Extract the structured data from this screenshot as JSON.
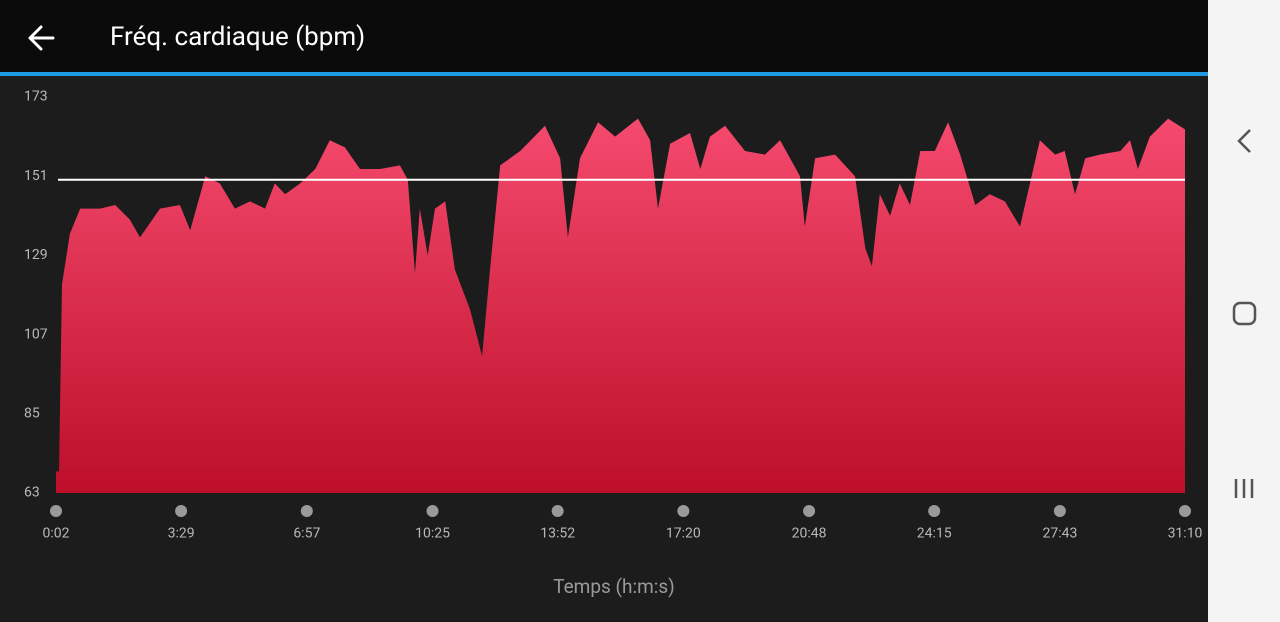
{
  "header": {
    "title": "Fréq. cardiaque (bpm)"
  },
  "chart_data": {
    "type": "area",
    "x_label": "Temps (h:m:s)",
    "x": [
      2,
      7,
      12,
      25,
      42,
      75,
      100,
      124,
      141,
      174,
      207,
      224,
      249,
      273,
      298,
      323,
      348,
      364,
      381,
      406,
      431,
      455,
      480,
      505,
      538,
      571,
      584,
      596,
      604,
      617,
      629,
      646,
      662,
      687,
      707,
      720,
      737,
      770,
      811,
      836,
      849,
      869,
      899,
      927,
      965,
      985,
      998,
      1018,
      1051,
      1068,
      1084,
      1109,
      1142,
      1175,
      1200,
      1233,
      1241,
      1258,
      1291,
      1324,
      1341,
      1352,
      1365,
      1382,
      1398,
      1415,
      1432,
      1456,
      1478,
      1498,
      1523,
      1547,
      1572,
      1597,
      1630,
      1655,
      1671,
      1688,
      1705,
      1729,
      1763,
      1779,
      1792,
      1812,
      1842,
      1870
    ],
    "values": [
      69,
      69,
      121,
      135,
      142,
      142,
      143,
      139,
      134,
      142,
      143,
      136,
      151,
      149,
      142,
      144,
      142,
      149,
      146,
      149,
      153,
      161,
      159,
      153,
      153,
      154,
      150,
      124,
      142,
      129,
      142,
      144,
      125,
      114,
      101,
      125,
      154,
      158,
      165,
      156,
      134,
      156,
      166,
      162,
      167,
      161,
      142,
      160,
      163,
      153,
      162,
      165,
      158,
      157,
      161,
      151,
      137,
      156,
      157,
      151,
      131,
      126,
      146,
      140,
      149,
      143,
      158,
      158,
      166,
      157,
      143,
      146,
      144,
      137,
      161,
      157,
      158,
      146,
      156,
      157,
      158,
      161,
      153,
      162,
      167,
      164
    ],
    "color_top": "#f54a6e",
    "color_bottom": "#bd0f2a",
    "reference_line": 150,
    "reference_color": "#ffffff",
    "xlim": [
      2,
      1870
    ],
    "xticks": [
      {
        "value": 2,
        "label": "0:02"
      },
      {
        "value": 209,
        "label": "3:29"
      },
      {
        "value": 417,
        "label": "6:57"
      },
      {
        "value": 625,
        "label": "10:25"
      },
      {
        "value": 832,
        "label": "13:52"
      },
      {
        "value": 1040,
        "label": "17:20"
      },
      {
        "value": 1248,
        "label": "20:48"
      },
      {
        "value": 1455,
        "label": "24:15"
      },
      {
        "value": 1663,
        "label": "27:43"
      },
      {
        "value": 1870,
        "label": "31:10"
      }
    ],
    "ylim": [
      63,
      173
    ],
    "yticks": [
      63,
      85,
      107,
      129,
      151,
      173
    ]
  }
}
